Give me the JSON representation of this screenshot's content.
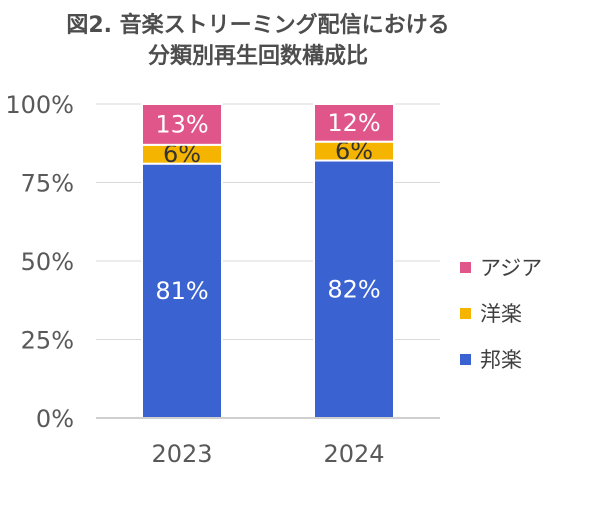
{
  "chart_data": {
    "type": "bar",
    "stacked": true,
    "title": "図2. 音楽ストリーミング配信における分類別再生回数構成比",
    "title_lines": [
      "図2. 音楽ストリーミング配信における",
      "分類別再生回数構成比"
    ],
    "categories": [
      "2023",
      "2024"
    ],
    "series": [
      {
        "name": "邦楽",
        "values": [
          81,
          82
        ],
        "labels": [
          "81%",
          "82%"
        ],
        "color": "#3a62d0",
        "label_color": "#ffffff"
      },
      {
        "name": "洋楽",
        "values": [
          6,
          6
        ],
        "labels": [
          "6%",
          "6%"
        ],
        "color": "#f4b400",
        "label_color": "#333333"
      },
      {
        "name": "アジア",
        "values": [
          13,
          12
        ],
        "labels": [
          "13%",
          "12%"
        ],
        "color": "#e0558a",
        "label_color": "#ffffff"
      }
    ],
    "legend_order": [
      "アジア",
      "洋楽",
      "邦楽"
    ],
    "legend_position": "right",
    "ylim": [
      0,
      100
    ],
    "yticks": [
      0,
      25,
      50,
      75,
      100
    ],
    "ytick_labels": [
      "0%",
      "25%",
      "50%",
      "75%",
      "100%"
    ],
    "grid": true
  }
}
